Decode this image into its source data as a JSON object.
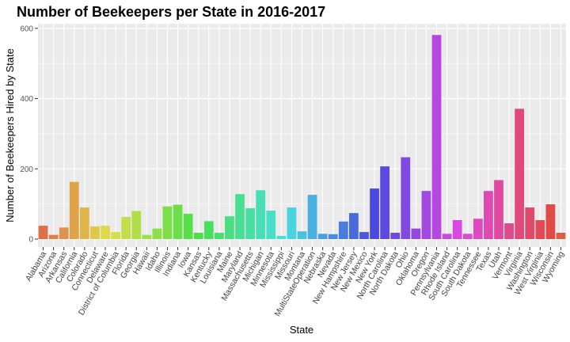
{
  "chart_data": {
    "type": "bar",
    "title": "Number of Beekeepers per State in 2016-2017",
    "xlabel": "State",
    "ylabel": "Number of Beekeepers Hired by State",
    "ylim": [
      0,
      620
    ],
    "yticks": [
      0,
      200,
      400,
      600
    ],
    "grid": true,
    "legend": "none",
    "categories": [
      "Alabama",
      "Arizona",
      "Arkansas",
      "California",
      "Colorado",
      "Connecticut",
      "Delaware",
      "District of Columbia",
      "Florida",
      "Georgia",
      "Hawaii",
      "Idaho",
      "Illinois",
      "Indiana",
      "Iowa",
      "Kansas",
      "Kentucky",
      "Louisiana",
      "Maine",
      "Maryland",
      "Massachusetts",
      "Michigan",
      "Minnesota",
      "Mississippi",
      "Missouri",
      "Montana",
      "MultiStateOperation",
      "Nebraska",
      "Nevada",
      "New Hampshire",
      "New Jersey",
      "New Mexico",
      "New York",
      "North Carolina",
      "North Dakota",
      "Ohio",
      "Oklahoma",
      "Oregon",
      "Pennsylvania",
      "Rhode Island",
      "South Carolina",
      "South Dakota",
      "Tennessee",
      "Texas",
      "Utah",
      "Vermont",
      "Virginia",
      "Washington",
      "West Virginia",
      "Wisconsin",
      "Wyoming"
    ],
    "values": [
      38,
      12,
      33,
      163,
      90,
      36,
      38,
      20,
      63,
      80,
      12,
      30,
      93,
      98,
      72,
      18,
      51,
      18,
      65,
      128,
      88,
      139,
      81,
      9,
      90,
      22,
      126,
      15,
      14,
      50,
      74,
      20,
      144,
      207,
      18,
      233,
      30,
      137,
      581,
      15,
      54,
      15,
      58,
      137,
      168,
      45,
      371,
      90,
      54,
      99,
      18
    ]
  }
}
